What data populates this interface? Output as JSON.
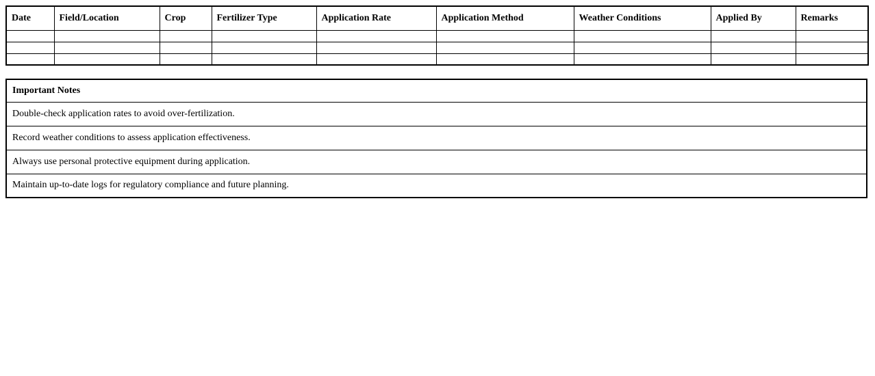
{
  "log_table": {
    "columns": [
      "Date",
      "Field/Location",
      "Crop",
      "Fertilizer Type",
      "Application Rate",
      "Application Method",
      "Weather Conditions",
      "Applied By",
      "Remarks"
    ],
    "empty_row_count": 3
  },
  "notes": {
    "title": "Important Notes",
    "items": [
      "Double-check application rates to avoid over-fertilization.",
      "Record weather conditions to assess application effectiveness.",
      "Always use personal protective equipment during application.",
      "Maintain up-to-date logs for regulatory compliance and future planning."
    ]
  },
  "colors": {
    "border": "#000000",
    "text": "#000000",
    "background": "#ffffff"
  }
}
